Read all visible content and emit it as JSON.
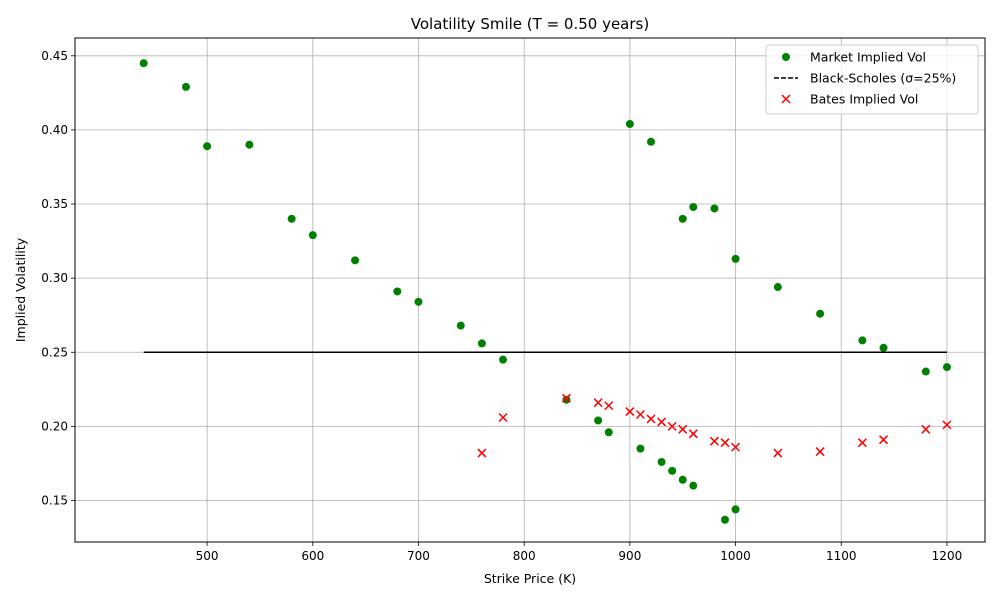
{
  "chart_data": {
    "type": "scatter",
    "title": "Volatility Smile (T = 0.50 years)",
    "xlabel": "Strike Price (K)",
    "ylabel": "Implied Volatility",
    "xlim": [
      375,
      1236
    ],
    "ylim": [
      0.122,
      0.462
    ],
    "xticks": [
      500,
      600,
      700,
      800,
      900,
      1000,
      1100,
      1200
    ],
    "yticks": [
      0.15,
      0.2,
      0.25,
      0.3,
      0.35,
      0.4,
      0.45
    ],
    "ytick_labels": [
      "0.15",
      "0.20",
      "0.25",
      "0.30",
      "0.35",
      "0.40",
      "0.45"
    ],
    "grid": true,
    "legend_position": "top-right",
    "series": [
      {
        "name": "Market Implied Vol",
        "kind": "scatter",
        "marker": "circle",
        "color": "#008000",
        "points": [
          [
            440,
            0.445
          ],
          [
            480,
            0.429
          ],
          [
            500,
            0.389
          ],
          [
            540,
            0.39
          ],
          [
            580,
            0.34
          ],
          [
            600,
            0.329
          ],
          [
            640,
            0.312
          ],
          [
            680,
            0.291
          ],
          [
            700,
            0.284
          ],
          [
            740,
            0.268
          ],
          [
            760,
            0.256
          ],
          [
            780,
            0.245
          ],
          [
            840,
            0.218
          ],
          [
            870,
            0.204
          ],
          [
            880,
            0.196
          ],
          [
            900,
            0.404
          ],
          [
            910,
            0.185
          ],
          [
            920,
            0.392
          ],
          [
            930,
            0.176
          ],
          [
            940,
            0.17
          ],
          [
            950,
            0.34
          ],
          [
            950,
            0.164
          ],
          [
            960,
            0.348
          ],
          [
            960,
            0.16
          ],
          [
            980,
            0.347
          ],
          [
            990,
            0.137
          ],
          [
            1000,
            0.313
          ],
          [
            1000,
            0.144
          ],
          [
            1040,
            0.294
          ],
          [
            1080,
            0.276
          ],
          [
            1120,
            0.258
          ],
          [
            1140,
            0.253
          ],
          [
            1180,
            0.237
          ],
          [
            1200,
            0.24
          ]
        ]
      },
      {
        "name": "Black-Scholes (σ=25%)",
        "kind": "line",
        "color": "#000000",
        "points": [
          [
            440,
            0.25
          ],
          [
            1200,
            0.25
          ]
        ]
      },
      {
        "name": "Bates Implied Vol",
        "kind": "scatter",
        "marker": "x",
        "color": "#ff0000",
        "points": [
          [
            760,
            0.182
          ],
          [
            780,
            0.206
          ],
          [
            840,
            0.219
          ],
          [
            870,
            0.216
          ],
          [
            880,
            0.214
          ],
          [
            900,
            0.21
          ],
          [
            910,
            0.208
          ],
          [
            920,
            0.205
          ],
          [
            930,
            0.203
          ],
          [
            940,
            0.2
          ],
          [
            950,
            0.198
          ],
          [
            960,
            0.195
          ],
          [
            980,
            0.19
          ],
          [
            990,
            0.189
          ],
          [
            1000,
            0.186
          ],
          [
            1040,
            0.182
          ],
          [
            1080,
            0.183
          ],
          [
            1120,
            0.189
          ],
          [
            1140,
            0.191
          ],
          [
            1180,
            0.198
          ],
          [
            1200,
            0.201
          ]
        ]
      }
    ]
  }
}
